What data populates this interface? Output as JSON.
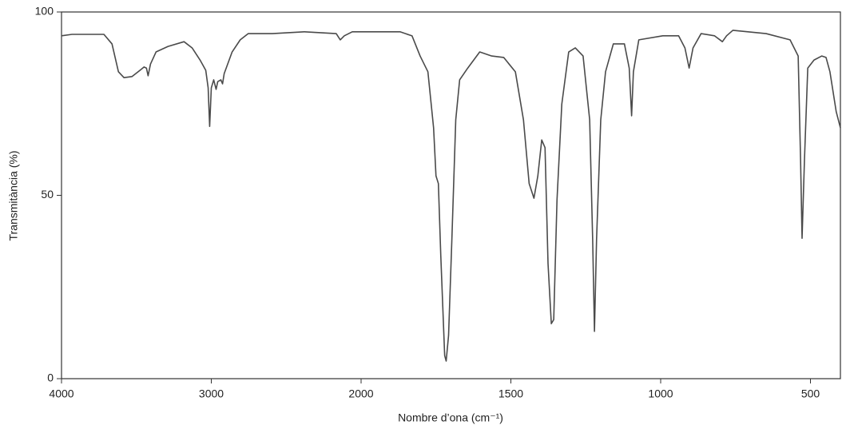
{
  "chart_data": {
    "type": "line",
    "x_label": "Nombre d’ona (cm⁻¹)",
    "y_label": "Transmitància (%)",
    "x_scale": "ticks-evenly-spaced",
    "xlim": [
      4000,
      400
    ],
    "xticks": [
      4000,
      3000,
      2000,
      1500,
      1000,
      500
    ],
    "ylim": [
      0,
      100
    ],
    "yticks": [
      0,
      50,
      100
    ],
    "grid": false,
    "series": [
      {
        "color": "#4a4a4a",
        "x": [
          4000,
          3930,
          3717,
          3663,
          3620,
          3583,
          3529,
          3476,
          3449,
          3433,
          3422,
          3406,
          3369,
          3289,
          3182,
          3128,
          3075,
          3037,
          3021,
          3011,
          3000,
          2984,
          2968,
          2957,
          2936,
          2925,
          2914,
          2861,
          2807,
          2754,
          2593,
          2380,
          2166,
          2139,
          2112,
          2059,
          1870,
          1830,
          1803,
          1777,
          1758,
          1750,
          1742,
          1734,
          1721,
          1716,
          1708,
          1697,
          1684,
          1671,
          1644,
          1604,
          1564,
          1524,
          1485,
          1458,
          1439,
          1423,
          1410,
          1397,
          1386,
          1376,
          1365,
          1357,
          1346,
          1330,
          1307,
          1285,
          1259,
          1237,
          1227,
          1221,
          1214,
          1200,
          1184,
          1158,
          1121,
          1105,
          1097,
          1091,
          1073,
          993,
          940,
          919,
          905,
          892,
          865,
          820,
          794,
          780,
          759,
          648,
          568,
          541,
          533,
          528,
          520,
          509,
          488,
          462,
          448,
          435,
          414,
          400
        ],
        "values": [
          93.5,
          93.9,
          93.9,
          91.3,
          83.7,
          82.1,
          82.4,
          84.1,
          85.0,
          84.7,
          82.6,
          85.8,
          89.1,
          90.6,
          91.9,
          90.2,
          86.9,
          84.1,
          79.3,
          68.8,
          79.3,
          81.5,
          78.9,
          81.0,
          81.5,
          80.4,
          83.2,
          89.1,
          92.4,
          94.1,
          94.1,
          94.6,
          94.1,
          92.4,
          93.5,
          94.6,
          94.6,
          93.5,
          88.0,
          83.7,
          68.4,
          55.3,
          53.2,
          33.6,
          6.3,
          4.8,
          11.8,
          37.9,
          70.6,
          81.5,
          84.7,
          89.1,
          88.0,
          87.6,
          83.7,
          70.6,
          53.2,
          49.2,
          55.3,
          65.1,
          63.0,
          31.4,
          15.0,
          16.1,
          48.8,
          74.9,
          89.1,
          90.2,
          88.0,
          70.6,
          37.9,
          12.9,
          37.9,
          70.6,
          83.7,
          91.3,
          91.3,
          84.7,
          71.7,
          83.7,
          92.4,
          93.5,
          93.5,
          90.2,
          84.7,
          90.2,
          94.1,
          93.5,
          91.9,
          93.5,
          95.0,
          94.1,
          92.4,
          88.0,
          59.7,
          38.3,
          59.7,
          84.7,
          86.9,
          88.0,
          87.6,
          83.7,
          72.8,
          68.4
        ]
      }
    ]
  }
}
